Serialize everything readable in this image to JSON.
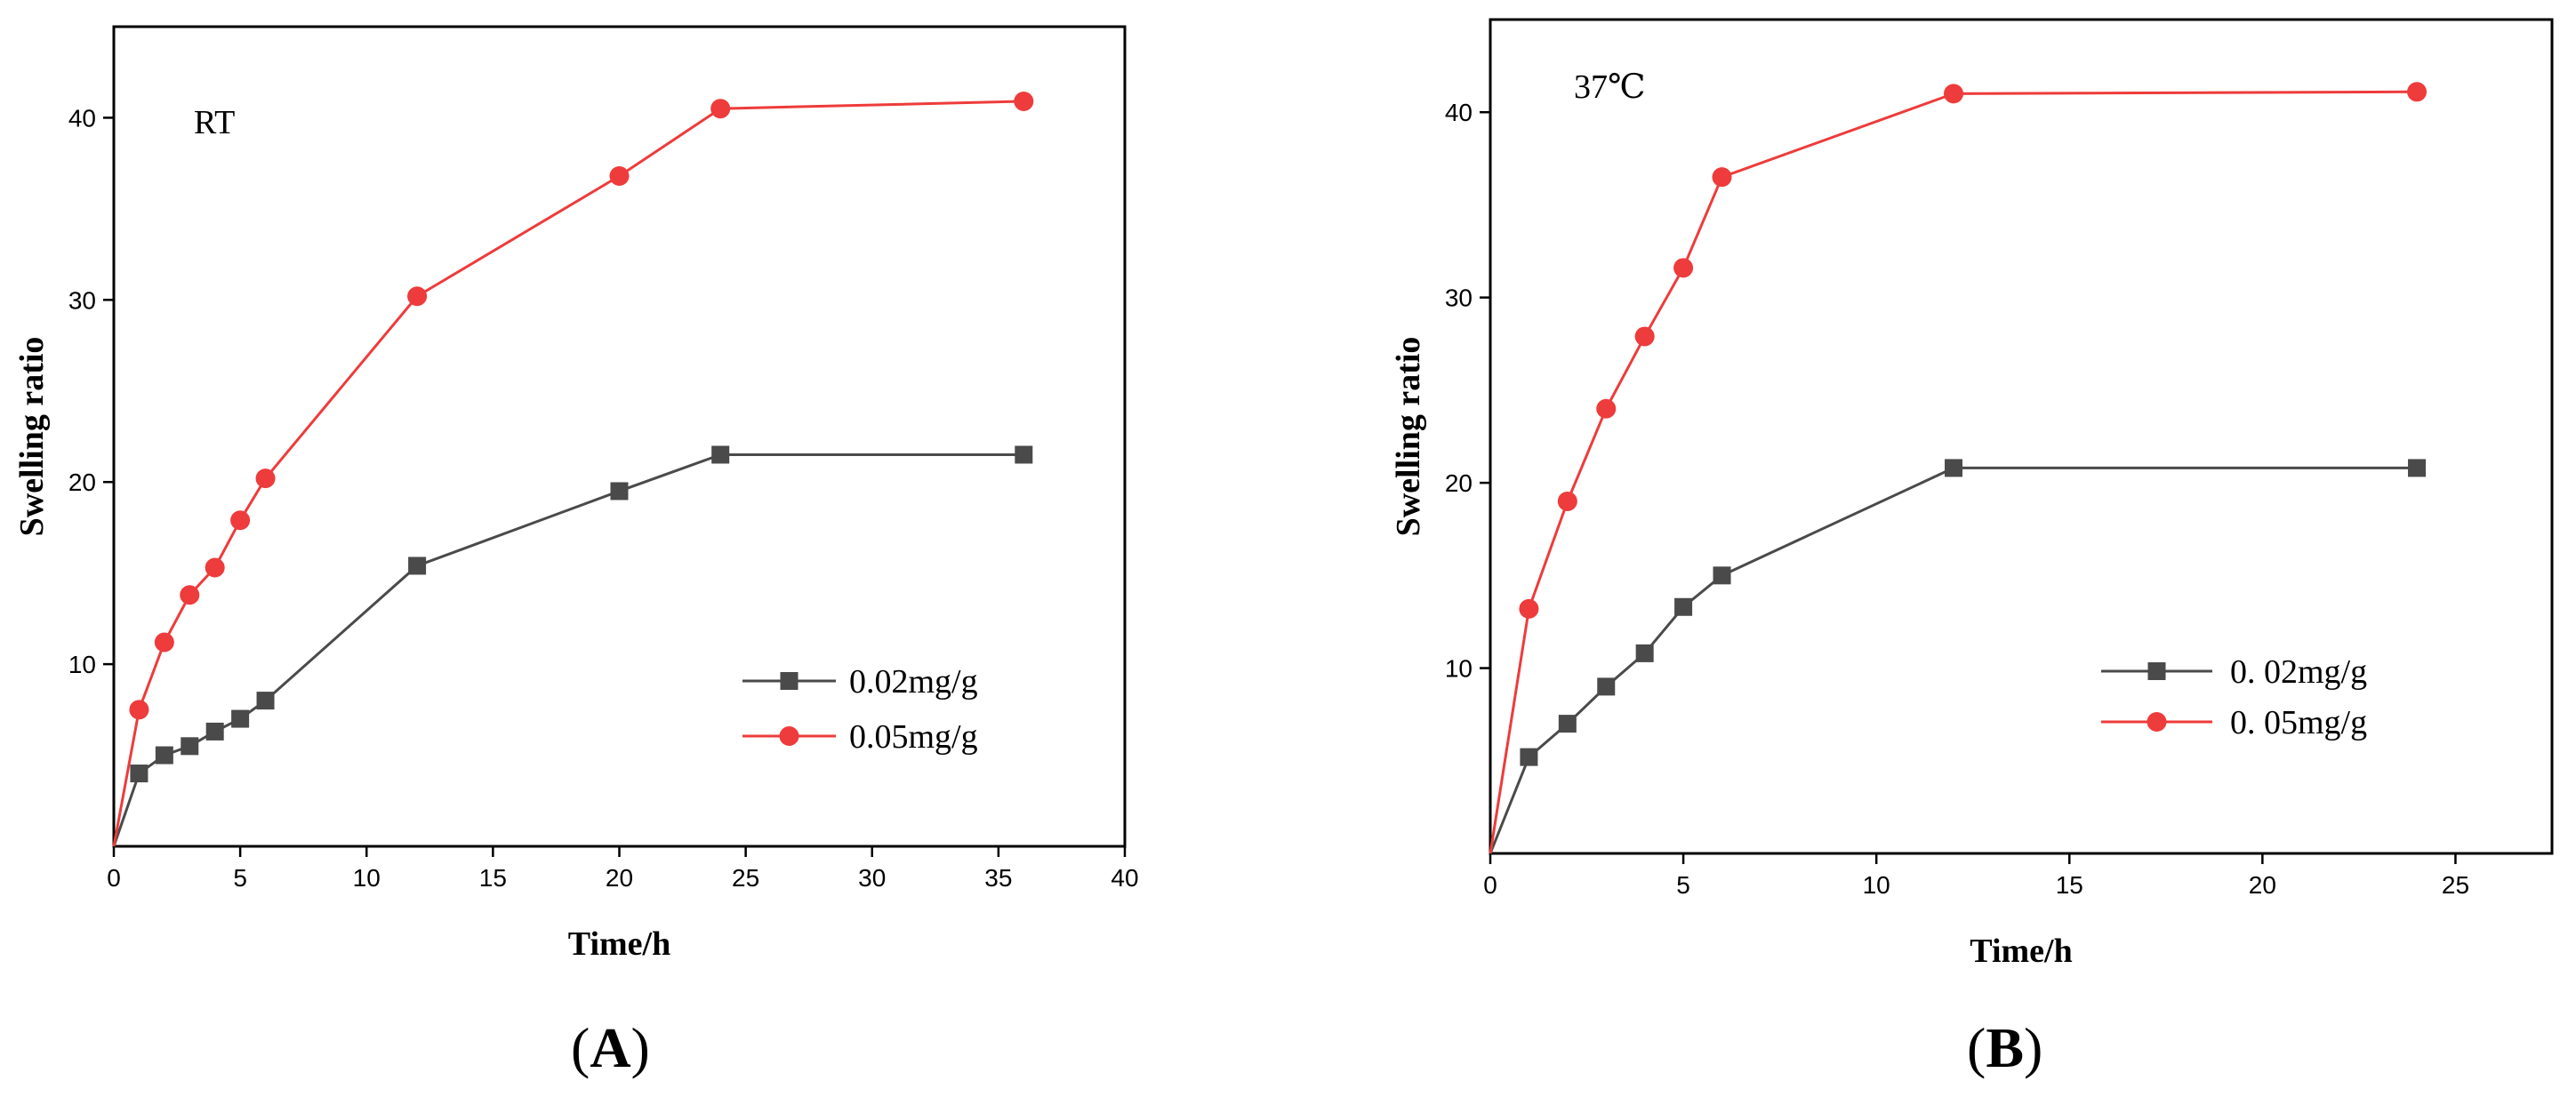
{
  "chart_data": [
    {
      "type": "line",
      "panel_label": "A",
      "annotation": "RT",
      "xlabel": "Time/h",
      "ylabel": "Swelling ratio",
      "xlim": [
        0,
        40
      ],
      "ylim": [
        0,
        45
      ],
      "xticks": [
        0,
        5,
        10,
        15,
        20,
        25,
        30,
        35,
        40
      ],
      "yticks": [
        10,
        20,
        30,
        40
      ],
      "x_tick_labels": [
        "0",
        "5",
        "10",
        "15",
        "20",
        "25",
        "30",
        "35",
        "40"
      ],
      "y_tick_labels": [
        "10",
        "20",
        "30",
        "40"
      ],
      "legend_position": "bottom-right",
      "series": [
        {
          "name": "0.02mg/g",
          "color": "#4a4a4a",
          "marker": "square",
          "x": [
            0,
            1,
            2,
            3,
            4,
            5,
            6,
            12,
            20,
            24,
            36
          ],
          "y": [
            0,
            4,
            5,
            5.5,
            6.3,
            7,
            8,
            15.4,
            19.5,
            21.5,
            21.5
          ]
        },
        {
          "name": "0.05mg/g",
          "color": "#ee3b3b",
          "marker": "circle",
          "x": [
            0,
            1,
            2,
            3,
            4,
            5,
            6,
            12,
            20,
            24,
            36
          ],
          "y": [
            0,
            7.5,
            11.2,
            13.8,
            15.3,
            17.9,
            20.2,
            30.2,
            36.8,
            40.5,
            40.9
          ]
        }
      ]
    },
    {
      "type": "line",
      "panel_label": "B",
      "annotation": "37℃",
      "xlabel": "Time/h",
      "ylabel": "Swelling ratio",
      "xlim": [
        0,
        27.5
      ],
      "ylim": [
        0,
        45
      ],
      "xticks": [
        0,
        5,
        10,
        15,
        20,
        25
      ],
      "yticks": [
        10,
        20,
        30,
        40
      ],
      "x_tick_labels": [
        "0",
        "5",
        "10",
        "15",
        "20",
        "25"
      ],
      "y_tick_labels": [
        "10",
        "20",
        "30",
        "40"
      ],
      "legend_position": "bottom-right",
      "series": [
        {
          "name": "0. 02mg/g",
          "color": "#4a4a4a",
          "marker": "square",
          "x": [
            0,
            1,
            2,
            3,
            4,
            5,
            6,
            12,
            24
          ],
          "y": [
            0,
            5.2,
            7,
            9,
            10.8,
            13.3,
            15,
            20.8,
            20.8
          ]
        },
        {
          "name": "0. 05mg/g",
          "color": "#ee3b3b",
          "marker": "circle",
          "x": [
            0,
            1,
            2,
            3,
            4,
            5,
            6,
            12,
            24
          ],
          "y": [
            0,
            13.2,
            19,
            24,
            27.9,
            31.6,
            36.5,
            41,
            41.1
          ]
        }
      ]
    }
  ]
}
